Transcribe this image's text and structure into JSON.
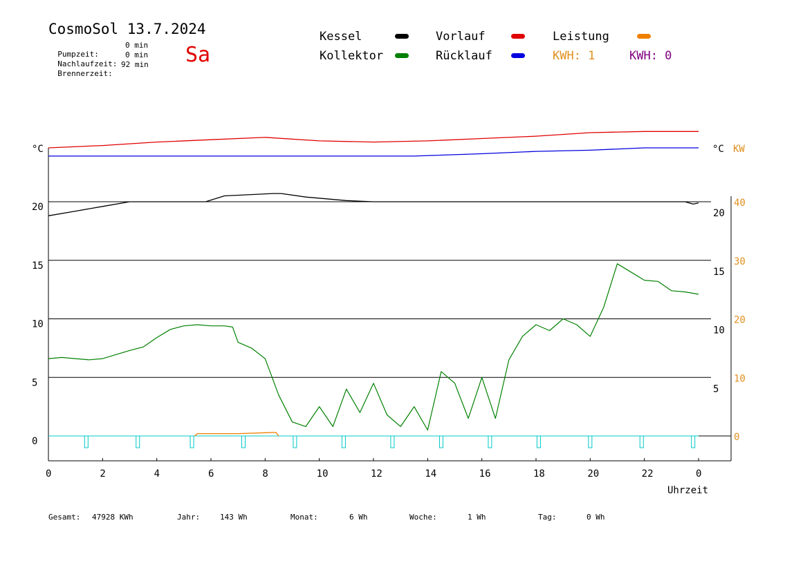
{
  "header": {
    "title": "CosmoSol 13.7.2024",
    "weekday": "Sa",
    "stats": [
      {
        "label": "Pumpzeit:",
        "value": "0 min"
      },
      {
        "label": "Nachlaufzeit:",
        "value": "0 min"
      },
      {
        "label": "Brennerzeit:",
        "value": "92 min"
      }
    ]
  },
  "legend": {
    "items": [
      {
        "label": "Kessel",
        "color": "#000000"
      },
      {
        "label": "Vorlauf",
        "color": "#e00000"
      },
      {
        "label": "Leistung",
        "color": "#f08000"
      },
      {
        "label": "Kollektor",
        "color": "#008000"
      },
      {
        "label": "Rücklauf",
        "color": "#0000e0"
      }
    ],
    "kwh": [
      {
        "text": "KWH: 1",
        "color": "#e09020"
      },
      {
        "text": "KWH: 0",
        "color": "#800080"
      }
    ]
  },
  "footer": [
    {
      "label": "Gesamt:",
      "value": "47928 KWh"
    },
    {
      "label": "Jahr:",
      "value": "143 Wh"
    },
    {
      "label": "Monat:",
      "value": "6 Wh"
    },
    {
      "label": "Woche:",
      "value": "1 Wh"
    },
    {
      "label": "Tag:",
      "value": "0 Wh"
    }
  ],
  "chart_data": {
    "type": "line",
    "xlabel": "Uhrzeit",
    "x_ticks": [
      "0",
      "2",
      "4",
      "6",
      "8",
      "10",
      "12",
      "14",
      "16",
      "18",
      "20",
      "22",
      "0"
    ],
    "xlim": [
      0,
      24
    ],
    "y_left": {
      "unit": "°C",
      "ticks": [
        "0",
        "5",
        "10",
        "15",
        "20"
      ],
      "range": [
        -2,
        27
      ]
    },
    "y_right_temp": {
      "unit": "°C",
      "ticks": [
        "5",
        "10",
        "15",
        "20"
      ]
    },
    "y_right_power": {
      "unit": "KW",
      "ticks": [
        "0",
        "10",
        "20",
        "30",
        "40"
      ],
      "color": "#e09020"
    },
    "grid": "horizontal",
    "series": [
      {
        "name": "Vorlauf",
        "color": "#e00000",
        "x": [
          0,
          2,
          4,
          6,
          8,
          10,
          12,
          14,
          16,
          18,
          20,
          22,
          24
        ],
        "y": [
          24.6,
          24.8,
          25.1,
          25.3,
          25.5,
          25.2,
          25.1,
          25.2,
          25.4,
          25.6,
          25.9,
          26.0,
          26.0
        ]
      },
      {
        "name": "Rücklauf",
        "color": "#0000e0",
        "x": [
          0,
          4,
          8,
          12,
          13.5,
          16,
          18,
          20,
          22,
          24
        ],
        "y": [
          23.9,
          23.9,
          23.9,
          23.9,
          23.9,
          24.1,
          24.3,
          24.4,
          24.6,
          24.6
        ]
      },
      {
        "name": "Kessel",
        "color": "#000000",
        "x": [
          0,
          1,
          2,
          3,
          3.3,
          5.8,
          6.5,
          8.3,
          8.6,
          9.5,
          11,
          12,
          15.5,
          23.5,
          23.8,
          24
        ],
        "y": [
          18.8,
          19.2,
          19.6,
          20.0,
          20.0,
          20.0,
          20.5,
          20.7,
          20.7,
          20.4,
          20.1,
          20.0,
          20.0,
          20.0,
          19.8,
          19.9
        ]
      },
      {
        "name": "Kollektor",
        "color": "#008000",
        "x": [
          0,
          0.5,
          1,
          1.5,
          2,
          3,
          3.5,
          4,
          4.5,
          5,
          5.5,
          6,
          6.5,
          6.8,
          7,
          7.5,
          8,
          8.5,
          9,
          9.5,
          10,
          10.5,
          11,
          11.5,
          12,
          12.5,
          13,
          13.5,
          14,
          14.5,
          15,
          15.5,
          16,
          16.5,
          17,
          17.5,
          18,
          18.5,
          19,
          19.5,
          20,
          20.5,
          21,
          21.5,
          22,
          22.5,
          23,
          23.5,
          24
        ],
        "y": [
          6.6,
          6.7,
          6.6,
          6.5,
          6.6,
          7.3,
          7.6,
          8.4,
          9.1,
          9.4,
          9.5,
          9.4,
          9.4,
          9.3,
          8.0,
          7.5,
          6.6,
          3.5,
          1.2,
          0.8,
          2.5,
          0.8,
          4.0,
          2.0,
          4.5,
          1.8,
          0.8,
          2.5,
          0.5,
          5.5,
          4.5,
          1.5,
          5.0,
          1.5,
          6.5,
          8.5,
          9.5,
          9.0,
          10.0,
          9.5,
          8.5,
          11.0,
          14.7,
          14.0,
          13.3,
          13.2,
          12.4,
          12.3,
          12.1
        ]
      },
      {
        "name": "Leistung",
        "color": "#f08000",
        "x": [
          5.4,
          5.5,
          7,
          8.4,
          8.5
        ],
        "y": [
          0,
          0.2,
          0.2,
          0.3,
          0
        ]
      }
    ],
    "markers": {
      "color": "#00c8c8",
      "x": [
        1.4,
        3.3,
        5.3,
        7.2,
        9.1,
        10.9,
        12.7,
        14.5,
        16.3,
        18.1,
        20.0,
        21.9,
        23.8
      ]
    }
  }
}
